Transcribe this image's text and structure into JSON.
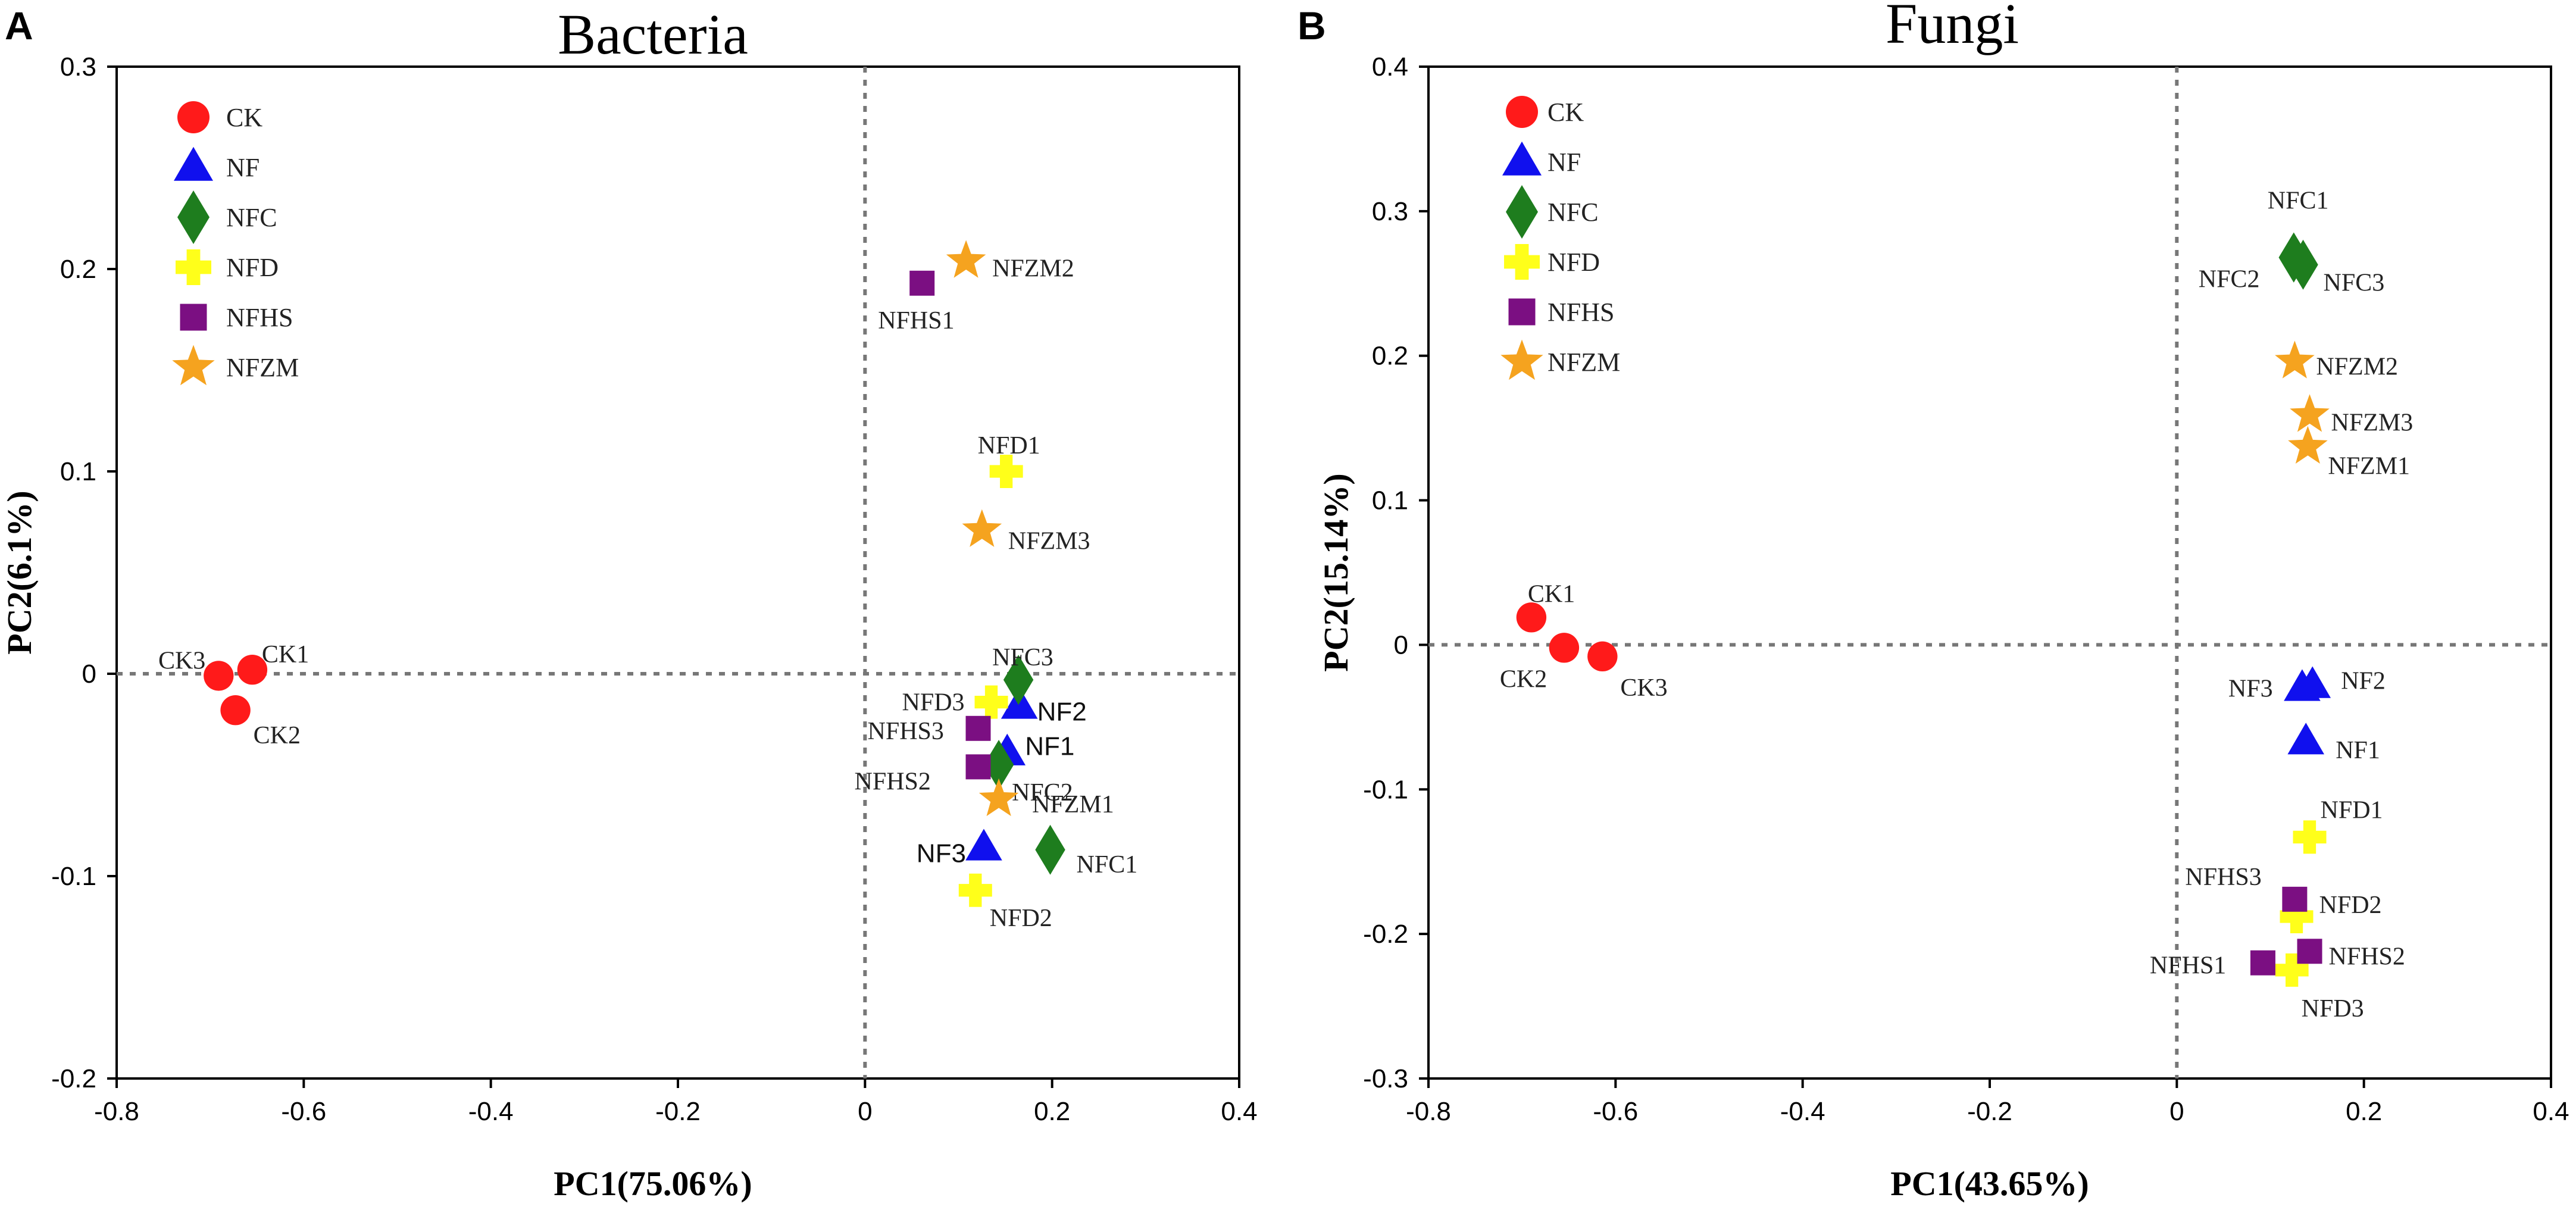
{
  "chart_data": [
    {
      "type": "scatter",
      "panel": "A",
      "title": "Bacteria",
      "xlabel": "PC1(75.06%)",
      "ylabel": "PC2(6.1%)",
      "xlim": [
        -0.8,
        0.4
      ],
      "ylim": [
        -0.2,
        0.3
      ],
      "xticks": [
        "-0.8",
        "-0.6",
        "-0.4",
        "-0.2",
        "0",
        "0.2",
        "0.4"
      ],
      "yticks": [
        "-0.2",
        "-0.1",
        "0",
        "0.1",
        "0.2",
        "0.3"
      ],
      "legend": [
        "CK",
        "NF",
        "NFC",
        "NFD",
        "NFHS",
        "NFZM"
      ],
      "points": [
        {
          "group": "CK",
          "label": "CK1",
          "x": -0.655,
          "y": 0.002
        },
        {
          "group": "CK",
          "label": "CK2",
          "x": -0.673,
          "y": -0.018
        },
        {
          "group": "CK",
          "label": "CK3",
          "x": -0.691,
          "y": -0.001
        },
        {
          "group": "NF",
          "label": "NF1",
          "x": 0.152,
          "y": -0.039
        },
        {
          "group": "NF",
          "label": "NF2",
          "x": 0.165,
          "y": -0.016
        },
        {
          "group": "NF",
          "label": "NF3",
          "x": 0.127,
          "y": -0.086
        },
        {
          "group": "NFC",
          "label": "NFC1",
          "x": 0.198,
          "y": -0.087
        },
        {
          "group": "NFC",
          "label": "NFC2",
          "x": 0.143,
          "y": -0.045
        },
        {
          "group": "NFC",
          "label": "NFC3",
          "x": 0.164,
          "y": -0.003
        },
        {
          "group": "NFD",
          "label": "NFD1",
          "x": 0.151,
          "y": 0.1
        },
        {
          "group": "NFD",
          "label": "NFD2",
          "x": 0.118,
          "y": -0.107
        },
        {
          "group": "NFD",
          "label": "NFD3",
          "x": 0.135,
          "y": -0.014
        },
        {
          "group": "NFHS",
          "label": "NFHS1",
          "x": 0.061,
          "y": 0.193
        },
        {
          "group": "NFHS",
          "label": "NFHS2",
          "x": 0.121,
          "y": -0.046
        },
        {
          "group": "NFHS",
          "label": "NFHS3",
          "x": 0.121,
          "y": -0.027
        },
        {
          "group": "NFZM",
          "label": "NFZM1",
          "x": 0.143,
          "y": -0.062
        },
        {
          "group": "NFZM",
          "label": "NFZM2",
          "x": 0.108,
          "y": 0.204
        },
        {
          "group": "NFZM",
          "label": "NFZM3",
          "x": 0.125,
          "y": 0.071
        }
      ]
    },
    {
      "type": "scatter",
      "panel": "B",
      "title": "Fungi",
      "xlabel": "PC1(43.65%)",
      "ylabel": "PC2(15.14%)",
      "xlim": [
        -0.8,
        0.4
      ],
      "ylim": [
        -0.3,
        0.4
      ],
      "xticks": [
        "-0.8",
        "-0.6",
        "-0.4",
        "-0.2",
        "0",
        "0.2",
        "0.4"
      ],
      "yticks": [
        "-0.3",
        "-0.2",
        "-0.1",
        "0",
        "0.1",
        "0.2",
        "0.3",
        "0.4"
      ],
      "legend": [
        "CK",
        "NF",
        "NFC",
        "NFD",
        "NFHS",
        "NFZM"
      ],
      "points": [
        {
          "group": "CK",
          "label": "CK1",
          "x": -0.69,
          "y": 0.019
        },
        {
          "group": "CK",
          "label": "CK2",
          "x": -0.655,
          "y": -0.002
        },
        {
          "group": "CK",
          "label": "CK3",
          "x": -0.614,
          "y": -0.008
        },
        {
          "group": "NF",
          "label": "NF1",
          "x": 0.138,
          "y": -0.067
        },
        {
          "group": "NF",
          "label": "NF2",
          "x": 0.145,
          "y": -0.028
        },
        {
          "group": "NF",
          "label": "NF3",
          "x": 0.134,
          "y": -0.03
        },
        {
          "group": "NFC",
          "label": "NFC1",
          "x": 0.125,
          "y": 0.268
        },
        {
          "group": "NFC",
          "label": "NFC2",
          "x": 0.125,
          "y": 0.268
        },
        {
          "group": "NFC",
          "label": "NFC3",
          "x": 0.135,
          "y": 0.263
        },
        {
          "group": "NFD",
          "label": "NFD1",
          "x": 0.142,
          "y": -0.133
        },
        {
          "group": "NFD",
          "label": "NFD2",
          "x": 0.128,
          "y": -0.188
        },
        {
          "group": "NFD",
          "label": "NFD3",
          "x": 0.123,
          "y": -0.225
        },
        {
          "group": "NFHS",
          "label": "NFHS1",
          "x": 0.092,
          "y": -0.22
        },
        {
          "group": "NFHS",
          "label": "NFHS2",
          "x": 0.142,
          "y": -0.212
        },
        {
          "group": "NFHS",
          "label": "NFHS3",
          "x": 0.126,
          "y": -0.176
        },
        {
          "group": "NFZM",
          "label": "NFZM1",
          "x": 0.14,
          "y": 0.137
        },
        {
          "group": "NFZM",
          "label": "NFZM2",
          "x": 0.126,
          "y": 0.196
        },
        {
          "group": "NFZM",
          "label": "NFZM3",
          "x": 0.142,
          "y": 0.159
        }
      ]
    }
  ],
  "colors": {
    "CK": "#ff1a1a",
    "NF": "#1010ee",
    "NFC": "#1e7d1e",
    "NFD": "#ffff1a",
    "NFHS": "#7b0f82",
    "NFZM": "#f5a31f"
  }
}
